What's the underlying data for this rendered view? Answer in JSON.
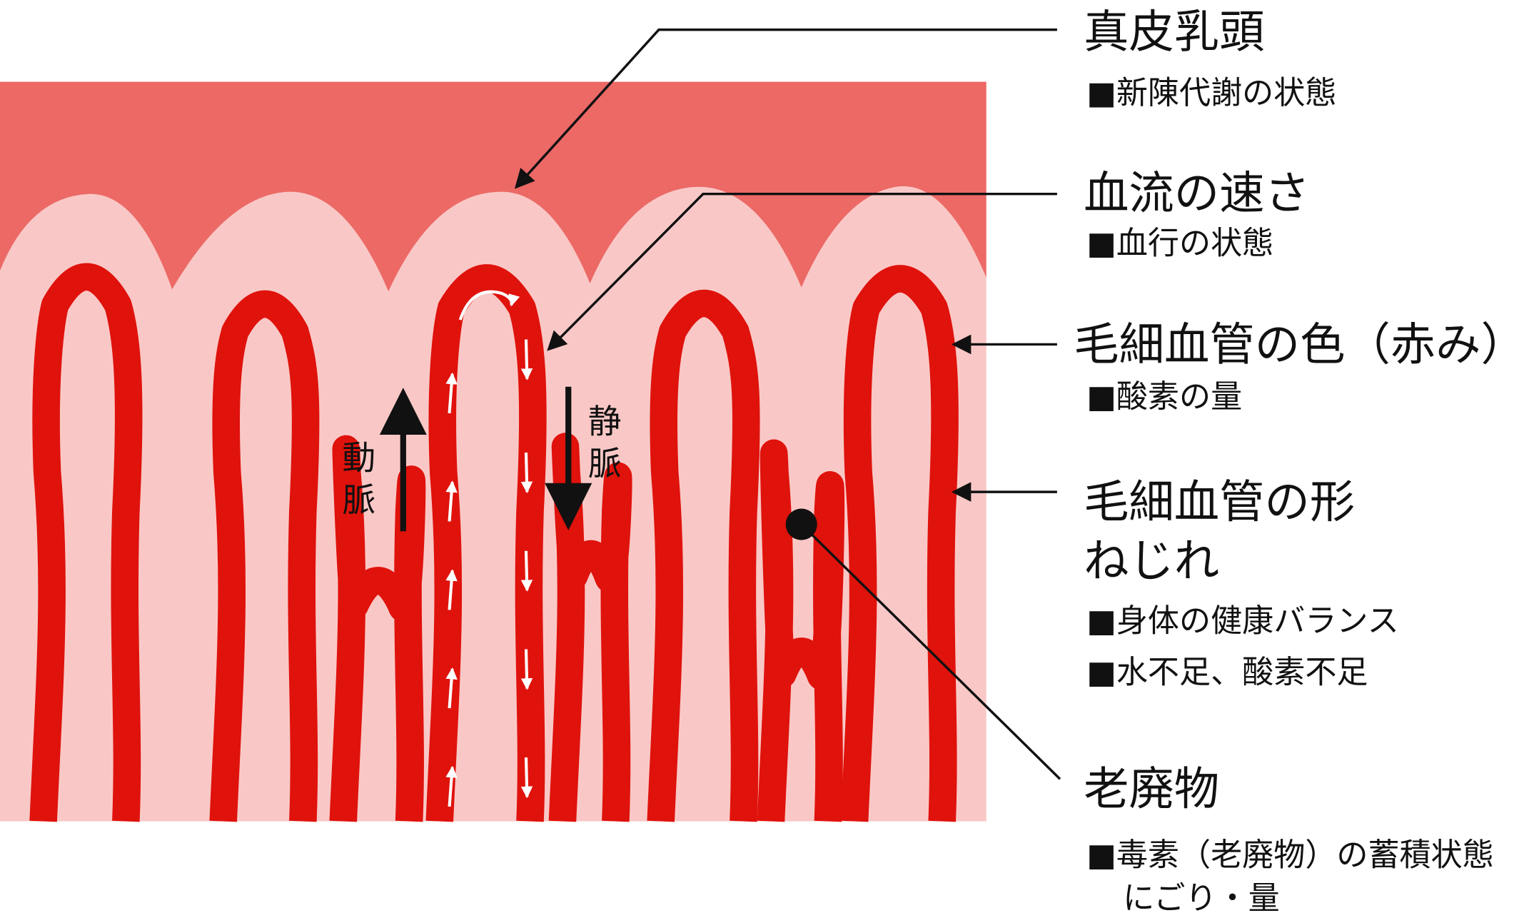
{
  "colors": {
    "dermis_band": "#ec6966",
    "papilla_tissue": "#f9c8c6",
    "capillary": "#e0120c",
    "ink": "#111111"
  },
  "diagram_labels": {
    "artery": "動脈",
    "vein": "静脈"
  },
  "annotations": [
    {
      "title": "真皮乳頭",
      "notes": [
        "■新陳代謝の状態"
      ]
    },
    {
      "title": "血流の速さ",
      "notes": [
        "■血行の状態"
      ]
    },
    {
      "title": "毛細血管の色（赤み）",
      "notes": [
        "■酸素の量"
      ]
    },
    {
      "title": "毛細血管の形",
      "title2": "ねじれ",
      "notes": [
        "■身体の健康バランス",
        "■水不足、酸素不足"
      ]
    },
    {
      "title": "老廃物",
      "notes": [
        "■毒素（老廃物）の蓄積状態",
        "にごり・量"
      ]
    }
  ]
}
